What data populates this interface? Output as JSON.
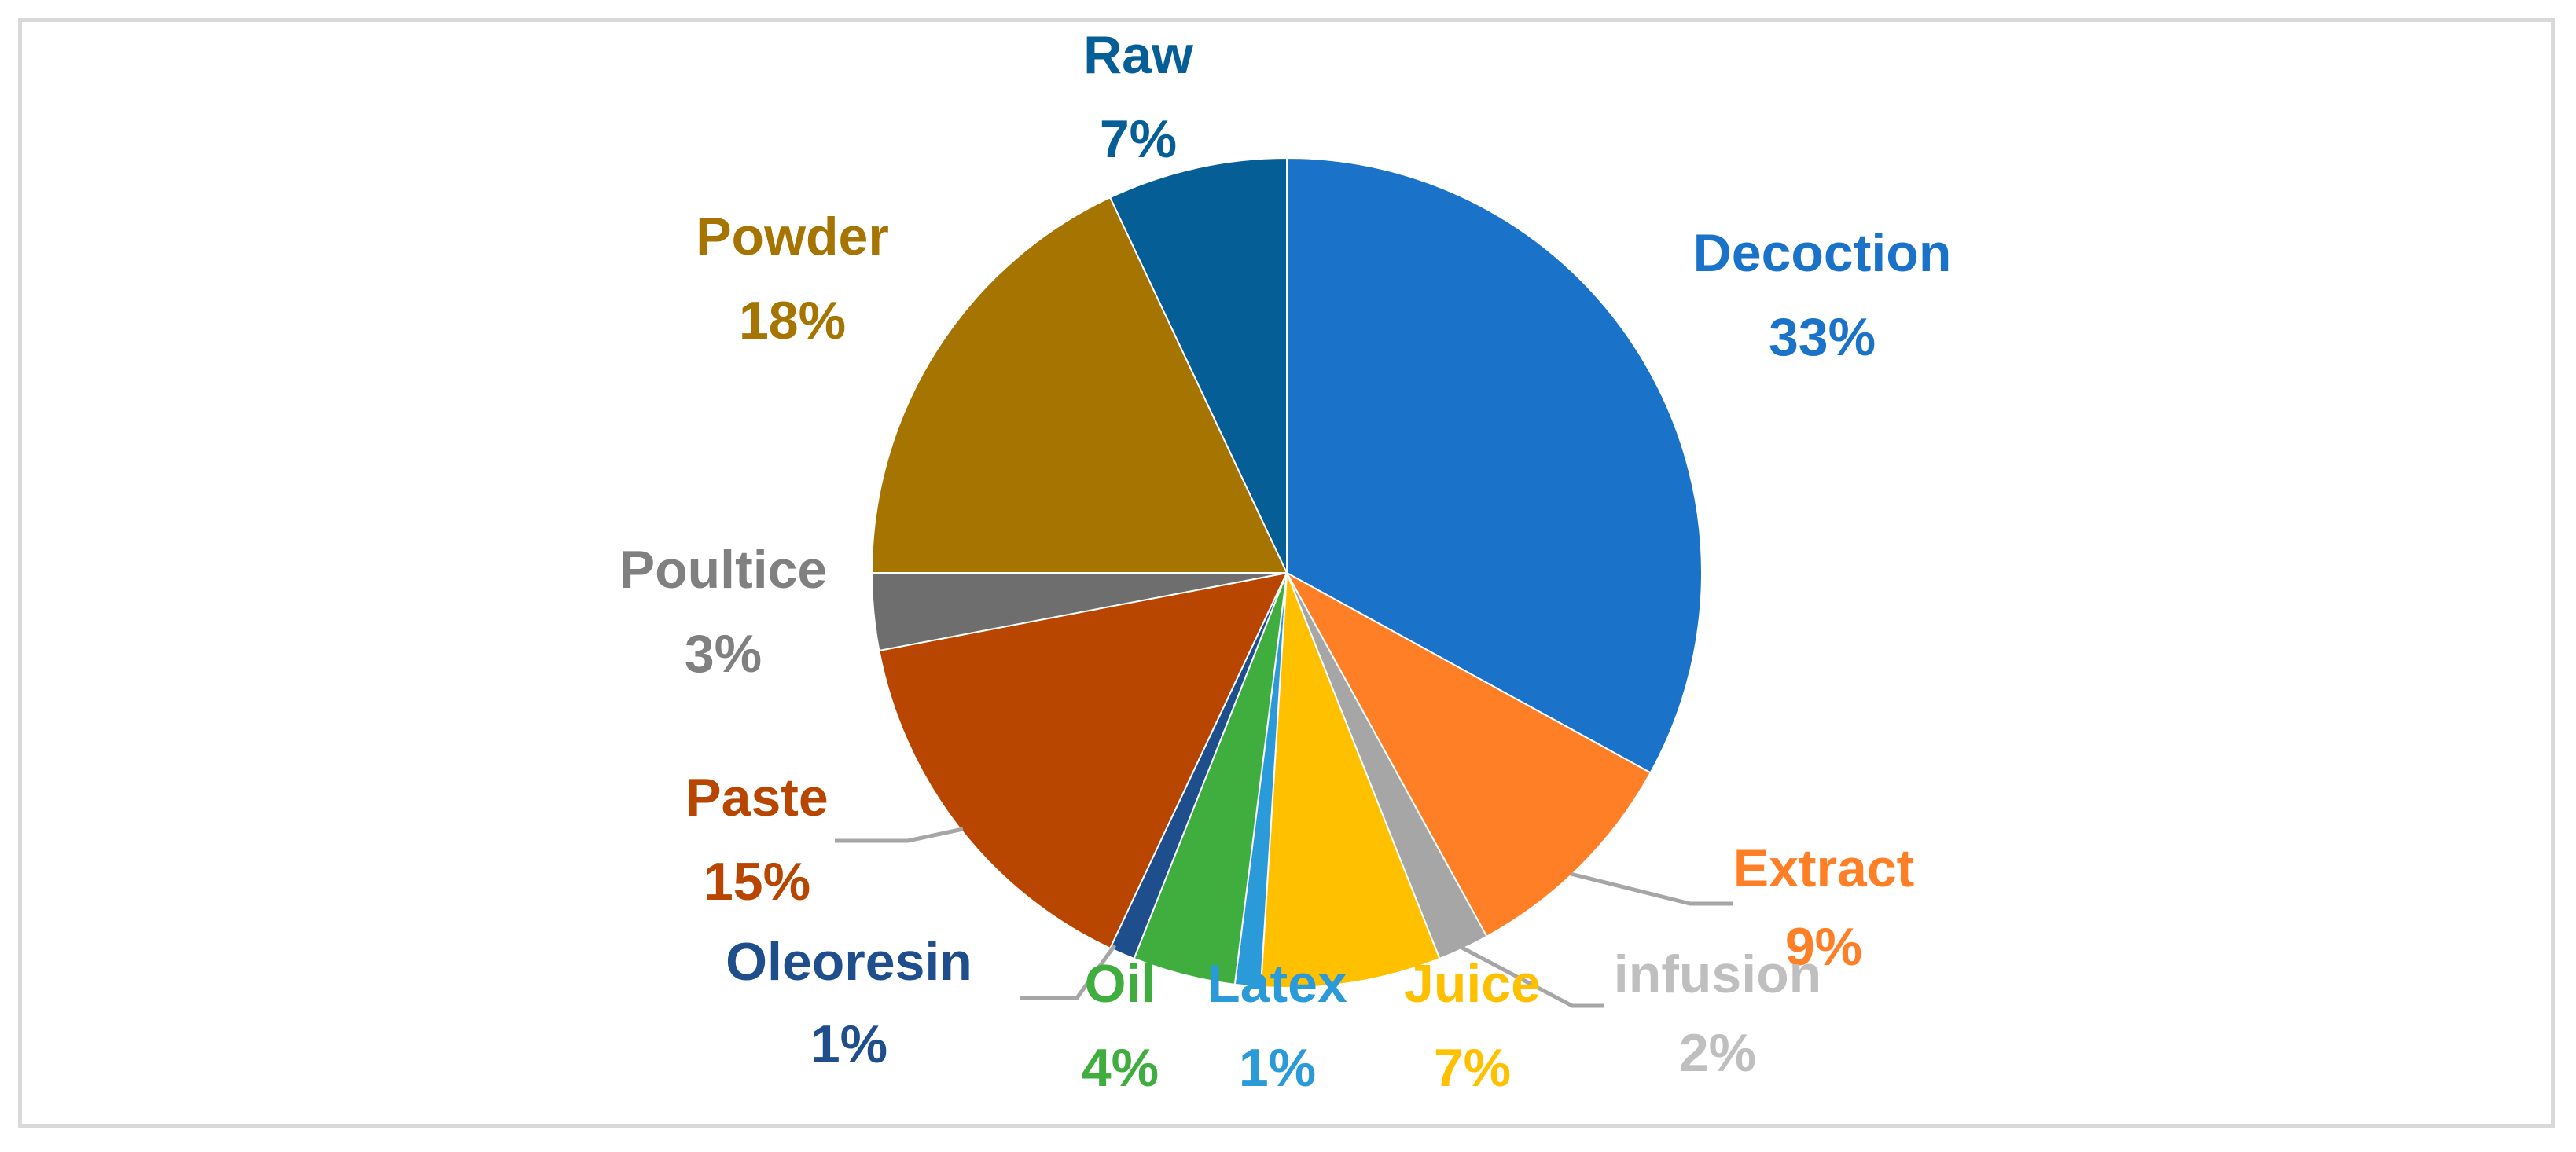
{
  "chart_data": {
    "type": "pie",
    "title": "",
    "start_angle_deg": 0,
    "direction": "clockwise",
    "slices": [
      {
        "name": "Decoction",
        "value": 33,
        "label": "33%",
        "color": "#1a73c8"
      },
      {
        "name": "Extract",
        "value": 9,
        "label": "9%",
        "color": "#ff7f27"
      },
      {
        "name": "infusion",
        "value": 2,
        "label": "2%",
        "color": "#a6a6a6"
      },
      {
        "name": "Juice",
        "value": 7,
        "label": "7%",
        "color": "#ffc000"
      },
      {
        "name": "Latex",
        "value": 1,
        "label": "1%",
        "color": "#2a9ad8"
      },
      {
        "name": "Oil",
        "value": 4,
        "label": "4%",
        "color": "#3fae3f"
      },
      {
        "name": "Oleoresin",
        "value": 1,
        "label": "1%",
        "color": "#1f4e8c"
      },
      {
        "name": "Paste",
        "value": 15,
        "label": "15%",
        "color": "#b84500"
      },
      {
        "name": "Poultice",
        "value": 3,
        "label": "3%",
        "color": "#6e6e6e"
      },
      {
        "name": "Powder",
        "value": 18,
        "label": "18%",
        "color": "#a67400"
      },
      {
        "name": "Raw",
        "value": 7,
        "label": "7%",
        "color": "#055e96"
      }
    ],
    "label_colors": {
      "Decoction": "#1a73c8",
      "Extract": "#ff7f27",
      "infusion": "#bfbfbf",
      "Juice": "#ffc000",
      "Latex": "#2a9ad8",
      "Oil": "#3fae3f",
      "Oleoresin": "#1f4e8c",
      "Paste": "#b84500",
      "Poultice": "#808080",
      "Powder": "#a67400",
      "Raw": "#055e96"
    },
    "leader_line_color": "#a6a6a6",
    "legend": "none"
  }
}
